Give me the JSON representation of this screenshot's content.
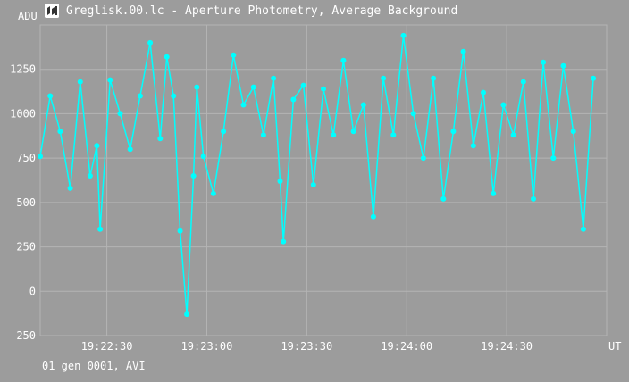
{
  "window": {
    "title": "Greglisk.00.lc - Aperture Photometry, Average Background",
    "icon": "telescope-app-icon"
  },
  "footer": {
    "note": "01 gen 0001, AVI"
  },
  "colors": {
    "background": "#9c9c9c",
    "grid": "#b4b4b4",
    "series": "#00ffff",
    "text": "#ffffff"
  },
  "chart_data": {
    "type": "line",
    "title": "Greglisk.00.lc - Aperture Photometry, Average Background",
    "ylabel": "ADU",
    "xlabel": "UT",
    "ylim": [
      -250,
      1500
    ],
    "xlim": [
      "19:22:10",
      "19:25:00"
    ],
    "grid": true,
    "y_ticks": [
      "-250",
      "0",
      "250",
      "500",
      "750",
      "1000",
      "1250"
    ],
    "x_ticks": [
      "19:22:30",
      "19:23:00",
      "19:23:30",
      "19:24:00",
      "19:24:30"
    ],
    "series": [
      {
        "color": "#00ffff",
        "marker": "circle",
        "x": [
          "19:22:10",
          "19:22:13",
          "19:22:16",
          "19:22:19",
          "19:22:22",
          "19:22:25",
          "19:22:27",
          "19:22:28",
          "19:22:31",
          "19:22:34",
          "19:22:37",
          "19:22:40",
          "19:22:43",
          "19:22:46",
          "19:22:48",
          "19:22:50",
          "19:22:52",
          "19:22:54",
          "19:22:56",
          "19:22:57",
          "19:22:59",
          "19:23:02",
          "19:23:05",
          "19:23:08",
          "19:23:11",
          "19:23:14",
          "19:23:17",
          "19:23:20",
          "19:23:22",
          "19:23:23",
          "19:23:26",
          "19:23:29",
          "19:23:32",
          "19:23:35",
          "19:23:38",
          "19:23:41",
          "19:23:44",
          "19:23:47",
          "19:23:50",
          "19:23:53",
          "19:23:56",
          "19:23:59",
          "19:24:02",
          "19:24:05",
          "19:24:08",
          "19:24:11",
          "19:24:14",
          "19:24:17",
          "19:24:20",
          "19:24:23",
          "19:24:26",
          "19:24:29",
          "19:24:32",
          "19:24:35",
          "19:24:38",
          "19:24:41",
          "19:24:44",
          "19:24:47",
          "19:24:50",
          "19:24:53",
          "19:24:56"
        ],
        "y": [
          760,
          1100,
          900,
          580,
          1180,
          650,
          820,
          350,
          1190,
          1000,
          800,
          1100,
          1400,
          860,
          1320,
          1100,
          340,
          -130,
          650,
          1150,
          760,
          550,
          900,
          1330,
          1050,
          1150,
          880,
          1200,
          620,
          280,
          1080,
          1160,
          600,
          1140,
          880,
          1300,
          900,
          1050,
          420,
          1200,
          880,
          1440,
          1000,
          750,
          1200,
          520,
          900,
          1350,
          820,
          1120,
          550,
          1050,
          880,
          1180,
          520,
          1290,
          750,
          1270,
          900,
          350,
          1200
        ]
      }
    ]
  }
}
